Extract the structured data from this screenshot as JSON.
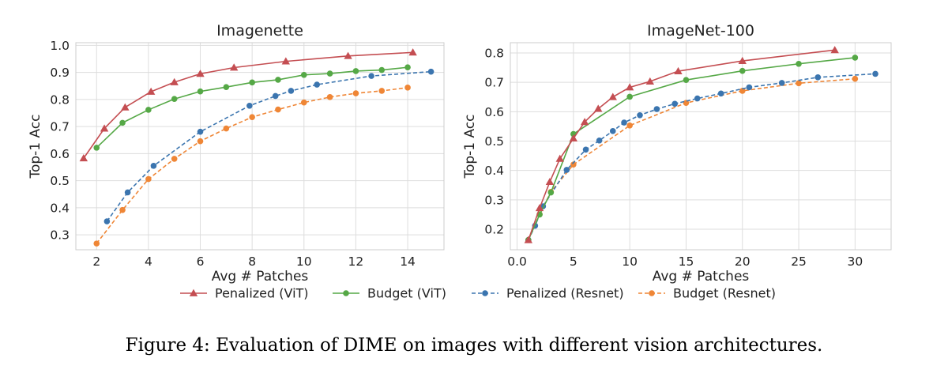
{
  "chart_data": [
    {
      "type": "line",
      "title": "Imagenette",
      "xlabel": "Avg # Patches",
      "ylabel": "Top-1 Acc",
      "xlim": [
        1.2,
        15.4
      ],
      "ylim": [
        0.245,
        1.01
      ],
      "xticks": [
        2,
        4,
        6,
        8,
        10,
        12,
        14
      ],
      "yticks": [
        0.3,
        0.4,
        0.5,
        0.6,
        0.7,
        0.8,
        0.9,
        1.0
      ],
      "grid": true,
      "series": [
        {
          "name": "Penalized (ViT)",
          "color": "#c44e52",
          "marker": "triangle",
          "dashed": false,
          "points": [
            [
              1.5,
              0.583
            ],
            [
              2.3,
              0.693
            ],
            [
              3.1,
              0.771
            ],
            [
              4.1,
              0.829
            ],
            [
              5.0,
              0.864
            ],
            [
              6.0,
              0.895
            ],
            [
              7.3,
              0.918
            ],
            [
              9.3,
              0.941
            ],
            [
              11.7,
              0.961
            ],
            [
              14.2,
              0.974
            ]
          ]
        },
        {
          "name": "Budget (ViT)",
          "color": "#55a846",
          "marker": "circle",
          "dashed": false,
          "points": [
            [
              2.0,
              0.622
            ],
            [
              3.0,
              0.714
            ],
            [
              4.0,
              0.762
            ],
            [
              5.0,
              0.802
            ],
            [
              6.0,
              0.83
            ],
            [
              7.0,
              0.846
            ],
            [
              8.0,
              0.863
            ],
            [
              9.0,
              0.873
            ],
            [
              10.0,
              0.891
            ],
            [
              11.0,
              0.896
            ],
            [
              12.0,
              0.905
            ],
            [
              13.0,
              0.909
            ],
            [
              14.0,
              0.919
            ]
          ]
        },
        {
          "name": "Penalized (Resnet)",
          "color": "#3b75af",
          "marker": "circle",
          "dashed": true,
          "points": [
            [
              2.4,
              0.35
            ],
            [
              3.2,
              0.457
            ],
            [
              4.2,
              0.555
            ],
            [
              6.0,
              0.681
            ],
            [
              7.9,
              0.777
            ],
            [
              8.9,
              0.813
            ],
            [
              9.5,
              0.832
            ],
            [
              10.5,
              0.855
            ],
            [
              12.6,
              0.887
            ],
            [
              14.9,
              0.903
            ]
          ]
        },
        {
          "name": "Budget (Resnet)",
          "color": "#ef8636",
          "marker": "circle",
          "dashed": true,
          "points": [
            [
              2.0,
              0.268
            ],
            [
              3.0,
              0.392
            ],
            [
              4.0,
              0.506
            ],
            [
              5.0,
              0.581
            ],
            [
              6.0,
              0.646
            ],
            [
              7.0,
              0.693
            ],
            [
              8.0,
              0.735
            ],
            [
              9.0,
              0.763
            ],
            [
              10.0,
              0.789
            ],
            [
              11.0,
              0.809
            ],
            [
              12.0,
              0.823
            ],
            [
              13.0,
              0.832
            ],
            [
              14.0,
              0.844
            ]
          ]
        }
      ]
    },
    {
      "type": "line",
      "title": "ImageNet-100",
      "xlabel": "Avg # Patches",
      "ylabel": "Top-1 Acc",
      "xlim": [
        -0.6,
        33.2
      ],
      "ylim": [
        0.13,
        0.835
      ],
      "xticks": [
        0,
        5,
        10,
        15,
        20,
        25,
        30
      ],
      "yticks": [
        0.2,
        0.3,
        0.4,
        0.5,
        0.6,
        0.7,
        0.8
      ],
      "grid": true,
      "series": [
        {
          "name": "Penalized (ViT)",
          "color": "#c44e52",
          "marker": "triangle",
          "dashed": false,
          "points": [
            [
              1.0,
              0.163
            ],
            [
              2.0,
              0.272
            ],
            [
              2.9,
              0.361
            ],
            [
              3.8,
              0.44
            ],
            [
              5.0,
              0.509
            ],
            [
              6.0,
              0.565
            ],
            [
              7.2,
              0.61
            ],
            [
              8.5,
              0.65
            ],
            [
              10.0,
              0.683
            ],
            [
              11.8,
              0.703
            ],
            [
              14.3,
              0.738
            ],
            [
              20.0,
              0.773
            ],
            [
              28.2,
              0.81
            ]
          ]
        },
        {
          "name": "Budget (ViT)",
          "color": "#55a846",
          "marker": "circle",
          "dashed": false,
          "points": [
            [
              1.0,
              0.163
            ],
            [
              2.0,
              0.25
            ],
            [
              3.0,
              0.325
            ],
            [
              5.0,
              0.524
            ],
            [
              10.0,
              0.651
            ],
            [
              15.0,
              0.708
            ],
            [
              20.0,
              0.739
            ],
            [
              25.0,
              0.763
            ],
            [
              30.0,
              0.784
            ]
          ]
        },
        {
          "name": "Penalized (Resnet)",
          "color": "#3b75af",
          "marker": "circle",
          "dashed": true,
          "points": [
            [
              1.0,
              0.163
            ],
            [
              1.6,
              0.212
            ],
            [
              2.3,
              0.278
            ],
            [
              4.4,
              0.402
            ],
            [
              6.1,
              0.471
            ],
            [
              7.3,
              0.502
            ],
            [
              8.5,
              0.534
            ],
            [
              9.5,
              0.563
            ],
            [
              10.9,
              0.588
            ],
            [
              12.4,
              0.609
            ],
            [
              14.0,
              0.627
            ],
            [
              16.0,
              0.645
            ],
            [
              18.1,
              0.662
            ],
            [
              20.6,
              0.683
            ],
            [
              23.5,
              0.698
            ],
            [
              26.7,
              0.717
            ],
            [
              31.8,
              0.729
            ]
          ]
        },
        {
          "name": "Budget (Resnet)",
          "color": "#ef8636",
          "marker": "circle",
          "dashed": true,
          "points": [
            [
              1.0,
              0.163
            ],
            [
              2.0,
              0.251
            ],
            [
              3.0,
              0.327
            ],
            [
              5.0,
              0.42
            ],
            [
              10.0,
              0.553
            ],
            [
              15.0,
              0.63
            ],
            [
              20.0,
              0.671
            ],
            [
              25.0,
              0.697
            ],
            [
              30.0,
              0.712
            ]
          ]
        }
      ]
    }
  ],
  "legend": {
    "placement": "bottom-center",
    "entries": [
      {
        "label": "Penalized (ViT)",
        "color": "#c44e52",
        "marker": "triangle",
        "dashed": false
      },
      {
        "label": "Budget (ViT)",
        "color": "#55a846",
        "marker": "circle",
        "dashed": false
      },
      {
        "label": "Penalized (Resnet)",
        "color": "#3b75af",
        "marker": "circle",
        "dashed": true
      },
      {
        "label": "Budget (Resnet)",
        "color": "#ef8636",
        "marker": "circle",
        "dashed": true
      }
    ]
  },
  "caption": "Figure 4:  Evaluation of DIME on images with different vision architectures."
}
